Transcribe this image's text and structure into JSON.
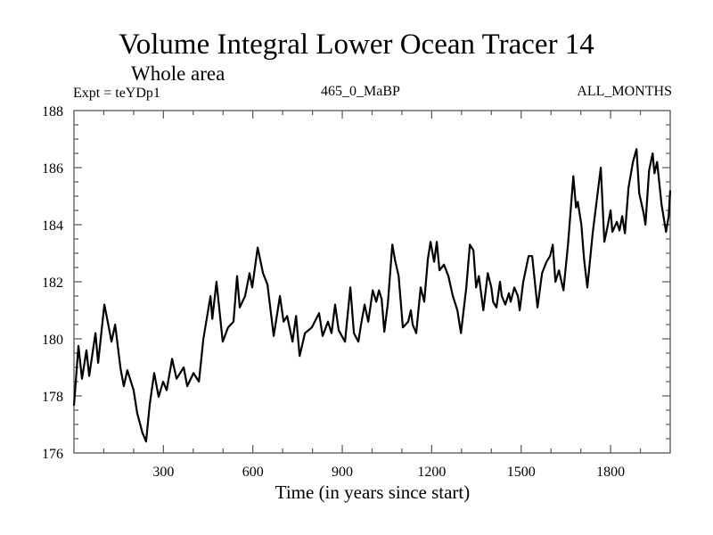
{
  "chart_data": {
    "type": "line",
    "title": "Volume Integral Lower Ocean Tracer 14",
    "subtitle": "Whole area",
    "annotations": {
      "left": "Expt = teYDp1",
      "center": "465_0_MaBP",
      "right": "ALL_MONTHS"
    },
    "xlabel": "Time (in years since start)",
    "ylabel": "",
    "xlim": [
      0,
      2000
    ],
    "ylim": [
      176,
      188
    ],
    "x_major_ticks": [
      300,
      600,
      900,
      1200,
      1500,
      1800
    ],
    "x_tick_labels": [
      "300",
      "600",
      "900",
      "1200",
      "1500",
      "1800"
    ],
    "x_minor_step": 100,
    "y_major_ticks": [
      176,
      178,
      180,
      182,
      184,
      186,
      188
    ],
    "y_tick_labels": [
      "176",
      "178",
      "180",
      "182",
      "184",
      "186",
      "188"
    ],
    "y_minor_step": 0.5,
    "grid": false,
    "legend": "none",
    "series": [
      {
        "name": "Volume Integral Lower Ocean Tracer 14",
        "color": "#000000",
        "x": [
          0,
          15,
          27,
          42,
          51,
          72,
          81,
          102,
          117,
          126,
          138,
          156,
          167,
          179,
          200,
          212,
          230,
          242,
          254,
          269,
          284,
          299,
          311,
          329,
          344,
          368,
          380,
          401,
          419,
          434,
          458,
          464,
          478,
          499,
          517,
          535,
          547,
          556,
          574,
          589,
          598,
          616,
          634,
          649,
          670,
          691,
          703,
          715,
          733,
          745,
          757,
          775,
          798,
          822,
          834,
          852,
          864,
          876,
          888,
          909,
          927,
          939,
          954,
          963,
          975,
          987,
          1002,
          1014,
          1023,
          1032,
          1041,
          1053,
          1068,
          1077,
          1089,
          1103,
          1121,
          1130,
          1136,
          1148,
          1163,
          1175,
          1187,
          1196,
          1208,
          1217,
          1226,
          1241,
          1256,
          1271,
          1286,
          1298,
          1316,
          1328,
          1340,
          1349,
          1358,
          1373,
          1388,
          1400,
          1406,
          1417,
          1429,
          1435,
          1447,
          1459,
          1465,
          1477,
          1489,
          1495,
          1507,
          1525,
          1537,
          1546,
          1555,
          1570,
          1585,
          1597,
          1606,
          1615,
          1627,
          1642,
          1657,
          1675,
          1684,
          1690,
          1702,
          1711,
          1722,
          1740,
          1767,
          1779,
          1791,
          1800,
          1806,
          1821,
          1830,
          1839,
          1848,
          1860,
          1875,
          1887,
          1896,
          1911,
          1917,
          1929,
          1941,
          1947,
          1956,
          1971,
          1986,
          1995,
          2000
        ],
        "y": [
          177.66,
          179.75,
          178.6,
          179.6,
          178.7,
          180.2,
          179.16,
          181.2,
          180.4,
          179.9,
          180.5,
          178.97,
          178.34,
          178.9,
          178.2,
          177.4,
          176.7,
          176.4,
          177.7,
          178.8,
          177.97,
          178.5,
          178.2,
          179.3,
          178.6,
          179.0,
          178.34,
          178.8,
          178.5,
          180.0,
          181.5,
          180.7,
          182.0,
          179.9,
          180.4,
          180.6,
          182.2,
          181.1,
          181.5,
          182.3,
          181.8,
          183.2,
          182.3,
          181.9,
          180.1,
          181.5,
          180.6,
          180.8,
          179.9,
          180.8,
          179.4,
          180.2,
          180.4,
          180.9,
          180.1,
          180.6,
          180.2,
          181.2,
          180.3,
          179.9,
          181.8,
          180.2,
          179.9,
          180.5,
          181.2,
          180.6,
          181.7,
          181.3,
          181.7,
          181.4,
          180.25,
          181.25,
          183.3,
          182.75,
          182.2,
          180.4,
          180.6,
          181.0,
          180.5,
          180.2,
          181.8,
          181.3,
          182.8,
          183.4,
          182.7,
          183.4,
          182.4,
          182.6,
          182.2,
          181.5,
          181.0,
          180.2,
          181.8,
          183.3,
          183.1,
          181.8,
          182.2,
          181.0,
          182.3,
          181.8,
          181.3,
          181.1,
          182.0,
          181.5,
          181.2,
          181.6,
          181.3,
          181.8,
          181.5,
          181.0,
          182.0,
          182.9,
          182.9,
          182.0,
          181.1,
          182.3,
          182.7,
          182.9,
          183.3,
          182.0,
          182.4,
          181.7,
          183.3,
          185.7,
          184.6,
          184.8,
          184.0,
          182.8,
          181.8,
          183.7,
          186.0,
          183.4,
          184.0,
          184.5,
          183.75,
          184.1,
          183.8,
          184.3,
          183.7,
          185.3,
          186.2,
          186.65,
          185.1,
          184.4,
          184.0,
          185.9,
          186.5,
          185.8,
          186.2,
          184.7,
          183.75,
          184.3,
          185.2
        ]
      }
    ]
  }
}
